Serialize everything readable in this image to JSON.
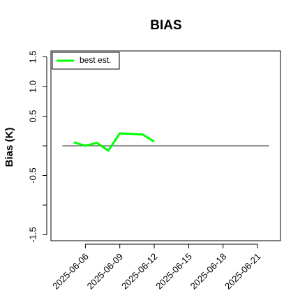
{
  "chart_data": {
    "type": "line",
    "title": "BIAS",
    "y_label": "Bias (K)",
    "x": [
      "2025-06-05",
      "2025-06-06",
      "2025-06-07",
      "2025-06-08",
      "2025-06-09",
      "2025-06-11",
      "2025-06-12"
    ],
    "series": [
      {
        "name": "best est.",
        "color": "#00ff00",
        "values": [
          0.06,
          0.0,
          0.05,
          -0.08,
          0.21,
          0.19,
          0.07
        ]
      }
    ],
    "xlim": [
      "2025-06-03",
      "2025-06-23"
    ],
    "xticks": [
      "2025-06-06",
      "2025-06-09",
      "2025-06-12",
      "2025-06-15",
      "2025-06-18",
      "2025-06-21"
    ],
    "ylim": [
      -1.6,
      1.6
    ],
    "yticks": [
      -1.5,
      {
        "value": -1,
        "label": null
      },
      -0.5,
      {
        "value": 0,
        "label": null
      },
      0.5,
      {
        "value": 1,
        "label": "1.0"
      },
      1.5
    ],
    "reference_line": {
      "y": 0,
      "x": [
        "2025-06-04",
        "2025-06-22"
      ],
      "color": "#555555"
    },
    "legend": "top-left"
  }
}
